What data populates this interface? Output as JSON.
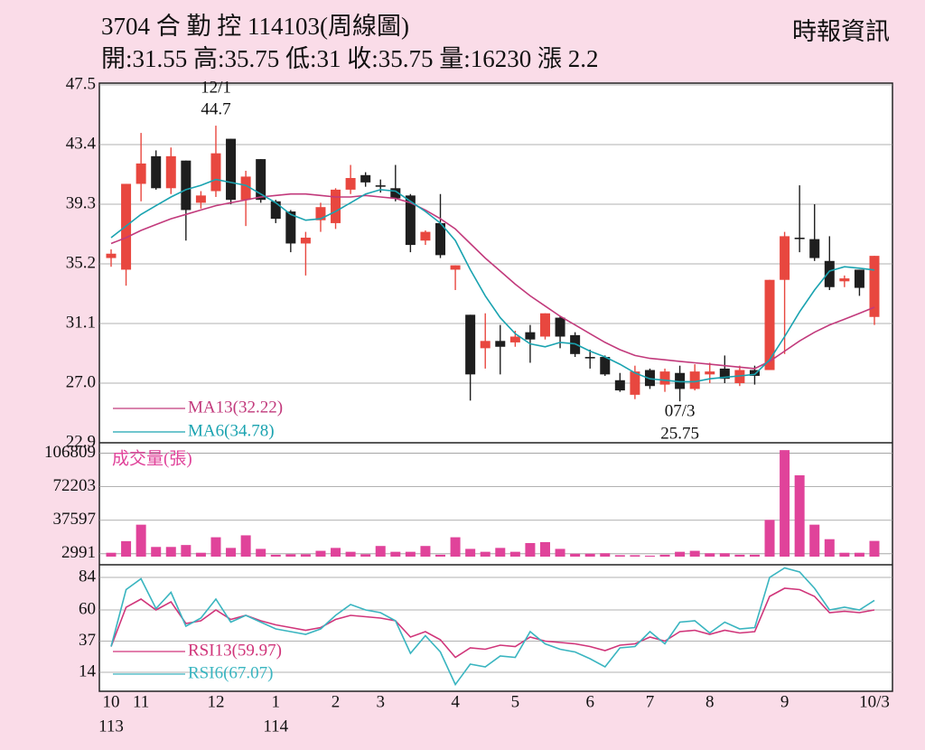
{
  "header": {
    "title": "3704 合 勤 控 114103(周線圖)",
    "source": "時報資訊",
    "summary": "開:31.55 高:35.75 低:31 收:35.75 量:16230 漲 2.2"
  },
  "chart_data": [
    {
      "type": "candlestick",
      "categories": [
        "10",
        null,
        "11",
        null,
        null,
        null,
        null,
        "12",
        null,
        null,
        null,
        "1",
        null,
        null,
        null,
        "2",
        null,
        null,
        "3",
        null,
        null,
        null,
        null,
        "4",
        null,
        null,
        null,
        "5",
        null,
        null,
        null,
        null,
        "6",
        null,
        null,
        null,
        "7",
        null,
        null,
        null,
        "8",
        null,
        null,
        null,
        null,
        "9",
        null,
        null,
        null,
        null,
        null,
        "10/3"
      ],
      "year_categories": [
        "113",
        null,
        null,
        null,
        null,
        null,
        null,
        null,
        null,
        null,
        null,
        "114",
        null,
        null,
        null,
        null,
        null,
        null,
        null,
        null,
        null,
        null,
        null,
        null,
        null,
        null,
        null,
        null,
        null,
        null,
        null,
        null,
        null,
        null,
        null,
        null,
        null,
        null,
        null,
        null,
        null,
        null,
        null,
        null,
        null,
        null,
        null,
        null,
        null,
        null,
        null,
        null
      ],
      "open": [
        35.6,
        34.8,
        40.7,
        42.6,
        40.4,
        42.3,
        39.4,
        40.2,
        43.8,
        39.6,
        42.4,
        39.5,
        38.8,
        36.6,
        38.2,
        38.0,
        40.3,
        41.3,
        40.6,
        40.4,
        39.9,
        36.8,
        38.0,
        34.8,
        31.7,
        29.4,
        29.9,
        29.8,
        30.5,
        30.2,
        31.5,
        30.3,
        28.8,
        28.8,
        27.2,
        26.2,
        27.9,
        26.9,
        27.7,
        26.6,
        27.6,
        28.0,
        27.0,
        27.9,
        27.9,
        34.1,
        37.0,
        36.9,
        35.4,
        34.0,
        34.8,
        31.55
      ],
      "high": [
        36.2,
        40.7,
        44.2,
        43.0,
        43.2,
        42.3,
        40.2,
        44.7,
        43.8,
        41.6,
        42.4,
        39.6,
        38.9,
        37.4,
        39.4,
        40.4,
        42.0,
        41.5,
        41.0,
        42.0,
        40.0,
        37.5,
        40.0,
        35.1,
        31.7,
        31.8,
        31.0,
        30.6,
        31.0,
        31.8,
        31.6,
        30.5,
        29.3,
        28.9,
        27.7,
        28.2,
        28.0,
        28.0,
        28.2,
        28.3,
        28.4,
        28.9,
        28.2,
        28.2,
        34.1,
        37.4,
        40.6,
        39.3,
        37.1,
        34.4,
        34.8,
        35.75
      ],
      "low": [
        35.0,
        33.7,
        39.5,
        40.3,
        40.0,
        36.8,
        39.0,
        39.8,
        39.3,
        37.8,
        39.4,
        38.0,
        36.0,
        34.4,
        37.4,
        37.6,
        40.0,
        40.5,
        40.1,
        39.5,
        36.0,
        36.5,
        35.6,
        33.4,
        25.8,
        28.0,
        27.6,
        29.5,
        28.4,
        30.0,
        29.4,
        28.8,
        28.0,
        27.5,
        26.4,
        25.9,
        26.6,
        26.4,
        25.75,
        26.5,
        27.0,
        27.0,
        26.8,
        26.9,
        27.9,
        29.0,
        36.0,
        35.4,
        33.4,
        33.6,
        33.0,
        31
      ],
      "close": [
        35.9,
        40.7,
        42.1,
        40.4,
        42.6,
        38.9,
        39.9,
        42.8,
        39.6,
        41.2,
        39.6,
        38.3,
        36.6,
        37.0,
        39.1,
        40.3,
        41.1,
        40.8,
        40.5,
        39.7,
        36.5,
        37.4,
        35.8,
        35.1,
        27.6,
        29.9,
        29.5,
        30.2,
        30.0,
        31.8,
        30.2,
        29.0,
        28.7,
        27.6,
        26.5,
        27.8,
        26.8,
        27.8,
        26.6,
        27.8,
        27.8,
        27.3,
        27.9,
        27.5,
        34.1,
        37.1,
        36.9,
        35.6,
        33.6,
        34.2,
        33.55,
        35.75
      ],
      "up_color": "#e8473f",
      "down_color": "#1e1e1e",
      "series": [
        {
          "name": "MA13(32.22)",
          "color": "#c23a7c",
          "values": [
            36.6,
            37.0,
            37.5,
            37.9,
            38.3,
            38.6,
            38.9,
            39.2,
            39.4,
            39.6,
            39.8,
            39.9,
            40.0,
            40.0,
            39.9,
            39.8,
            39.8,
            39.9,
            39.8,
            39.7,
            39.4,
            38.9,
            38.3,
            37.6,
            36.6,
            35.6,
            34.7,
            33.8,
            33.0,
            32.3,
            31.6,
            31.0,
            30.4,
            29.8,
            29.3,
            28.9,
            28.7,
            28.6,
            28.5,
            28.4,
            28.3,
            28.2,
            28.1,
            28.0,
            28.5,
            29.2,
            29.9,
            30.5,
            31.0,
            31.4,
            31.8,
            32.22
          ]
        },
        {
          "name": "MA6(34.78)",
          "color": "#1aa3b0",
          "values": [
            37.0,
            37.8,
            38.6,
            39.2,
            39.8,
            40.3,
            40.6,
            41.0,
            40.8,
            40.6,
            40.0,
            39.4,
            38.6,
            38.2,
            38.3,
            38.8,
            39.4,
            40.0,
            40.3,
            40.2,
            39.5,
            38.8,
            38.0,
            36.8,
            34.8,
            33.0,
            31.5,
            30.4,
            29.7,
            29.5,
            29.8,
            29.7,
            29.2,
            28.8,
            28.3,
            27.7,
            27.3,
            27.2,
            27.1,
            27.1,
            27.3,
            27.4,
            27.5,
            27.6,
            28.6,
            30.2,
            31.9,
            33.4,
            34.7,
            35.0,
            34.9,
            34.78
          ]
        }
      ],
      "annotations": [
        {
          "date": "12/1",
          "value": 44.7
        },
        {
          "date": "07/3",
          "value": 25.75
        }
      ],
      "ylim": [
        22.9,
        47.5
      ],
      "yticks": [
        47.5,
        43.4,
        39.3,
        35.2,
        31.1,
        {
          "value": 27,
          "label": "27.0"
        },
        22.9
      ],
      "grid": true
    },
    {
      "type": "bar",
      "title": "成交量(張)",
      "color": "#e0439a",
      "values": [
        4000,
        16000,
        33000,
        10000,
        10000,
        12000,
        4000,
        20000,
        9000,
        22000,
        8000,
        2000,
        2500,
        2500,
        6000,
        9000,
        5000,
        2500,
        11000,
        5000,
        5000,
        11000,
        2000,
        20000,
        8000,
        5000,
        9000,
        5000,
        14000,
        15000,
        8000,
        3000,
        3000,
        3500,
        1500,
        1500,
        1000,
        2000,
        5000,
        6000,
        3500,
        3500,
        2000,
        2000,
        38000,
        110000,
        84000,
        33000,
        18000,
        4000,
        4000,
        16230
      ],
      "ylim": [
        0,
        112000
      ],
      "yticks": [
        106809,
        72203,
        37597,
        2991
      ],
      "grid": true
    },
    {
      "type": "line",
      "series": [
        {
          "name": "RSI13(59.97)",
          "color": "#d0357a",
          "values": [
            33,
            62,
            68,
            60,
            66,
            50,
            52,
            60,
            53,
            56,
            52,
            49,
            47,
            45,
            47,
            53,
            56,
            55,
            54,
            52,
            40,
            44,
            38,
            25,
            32,
            31,
            34,
            33,
            40,
            37,
            36,
            35,
            33,
            30,
            34,
            35,
            40,
            37,
            44,
            45,
            42,
            45,
            43,
            44,
            70,
            76,
            75,
            70,
            58,
            59,
            58,
            59.97
          ]
        },
        {
          "name": "RSI6(67.07)",
          "color": "#3ab5c0",
          "values": [
            33,
            75,
            83,
            61,
            73,
            48,
            54,
            68,
            51,
            56,
            51,
            46,
            44,
            42,
            46,
            56,
            64,
            60,
            58,
            52,
            28,
            41,
            29,
            5,
            20,
            18,
            26,
            25,
            44,
            35,
            31,
            29,
            24,
            18,
            32,
            33,
            44,
            35,
            51,
            52,
            43,
            51,
            46,
            47,
            84,
            91,
            88,
            76,
            60,
            62,
            60,
            67.07
          ]
        }
      ],
      "ylim": [
        0,
        92
      ],
      "yticks": [
        84,
        60,
        37,
        14
      ],
      "grid": true
    }
  ]
}
